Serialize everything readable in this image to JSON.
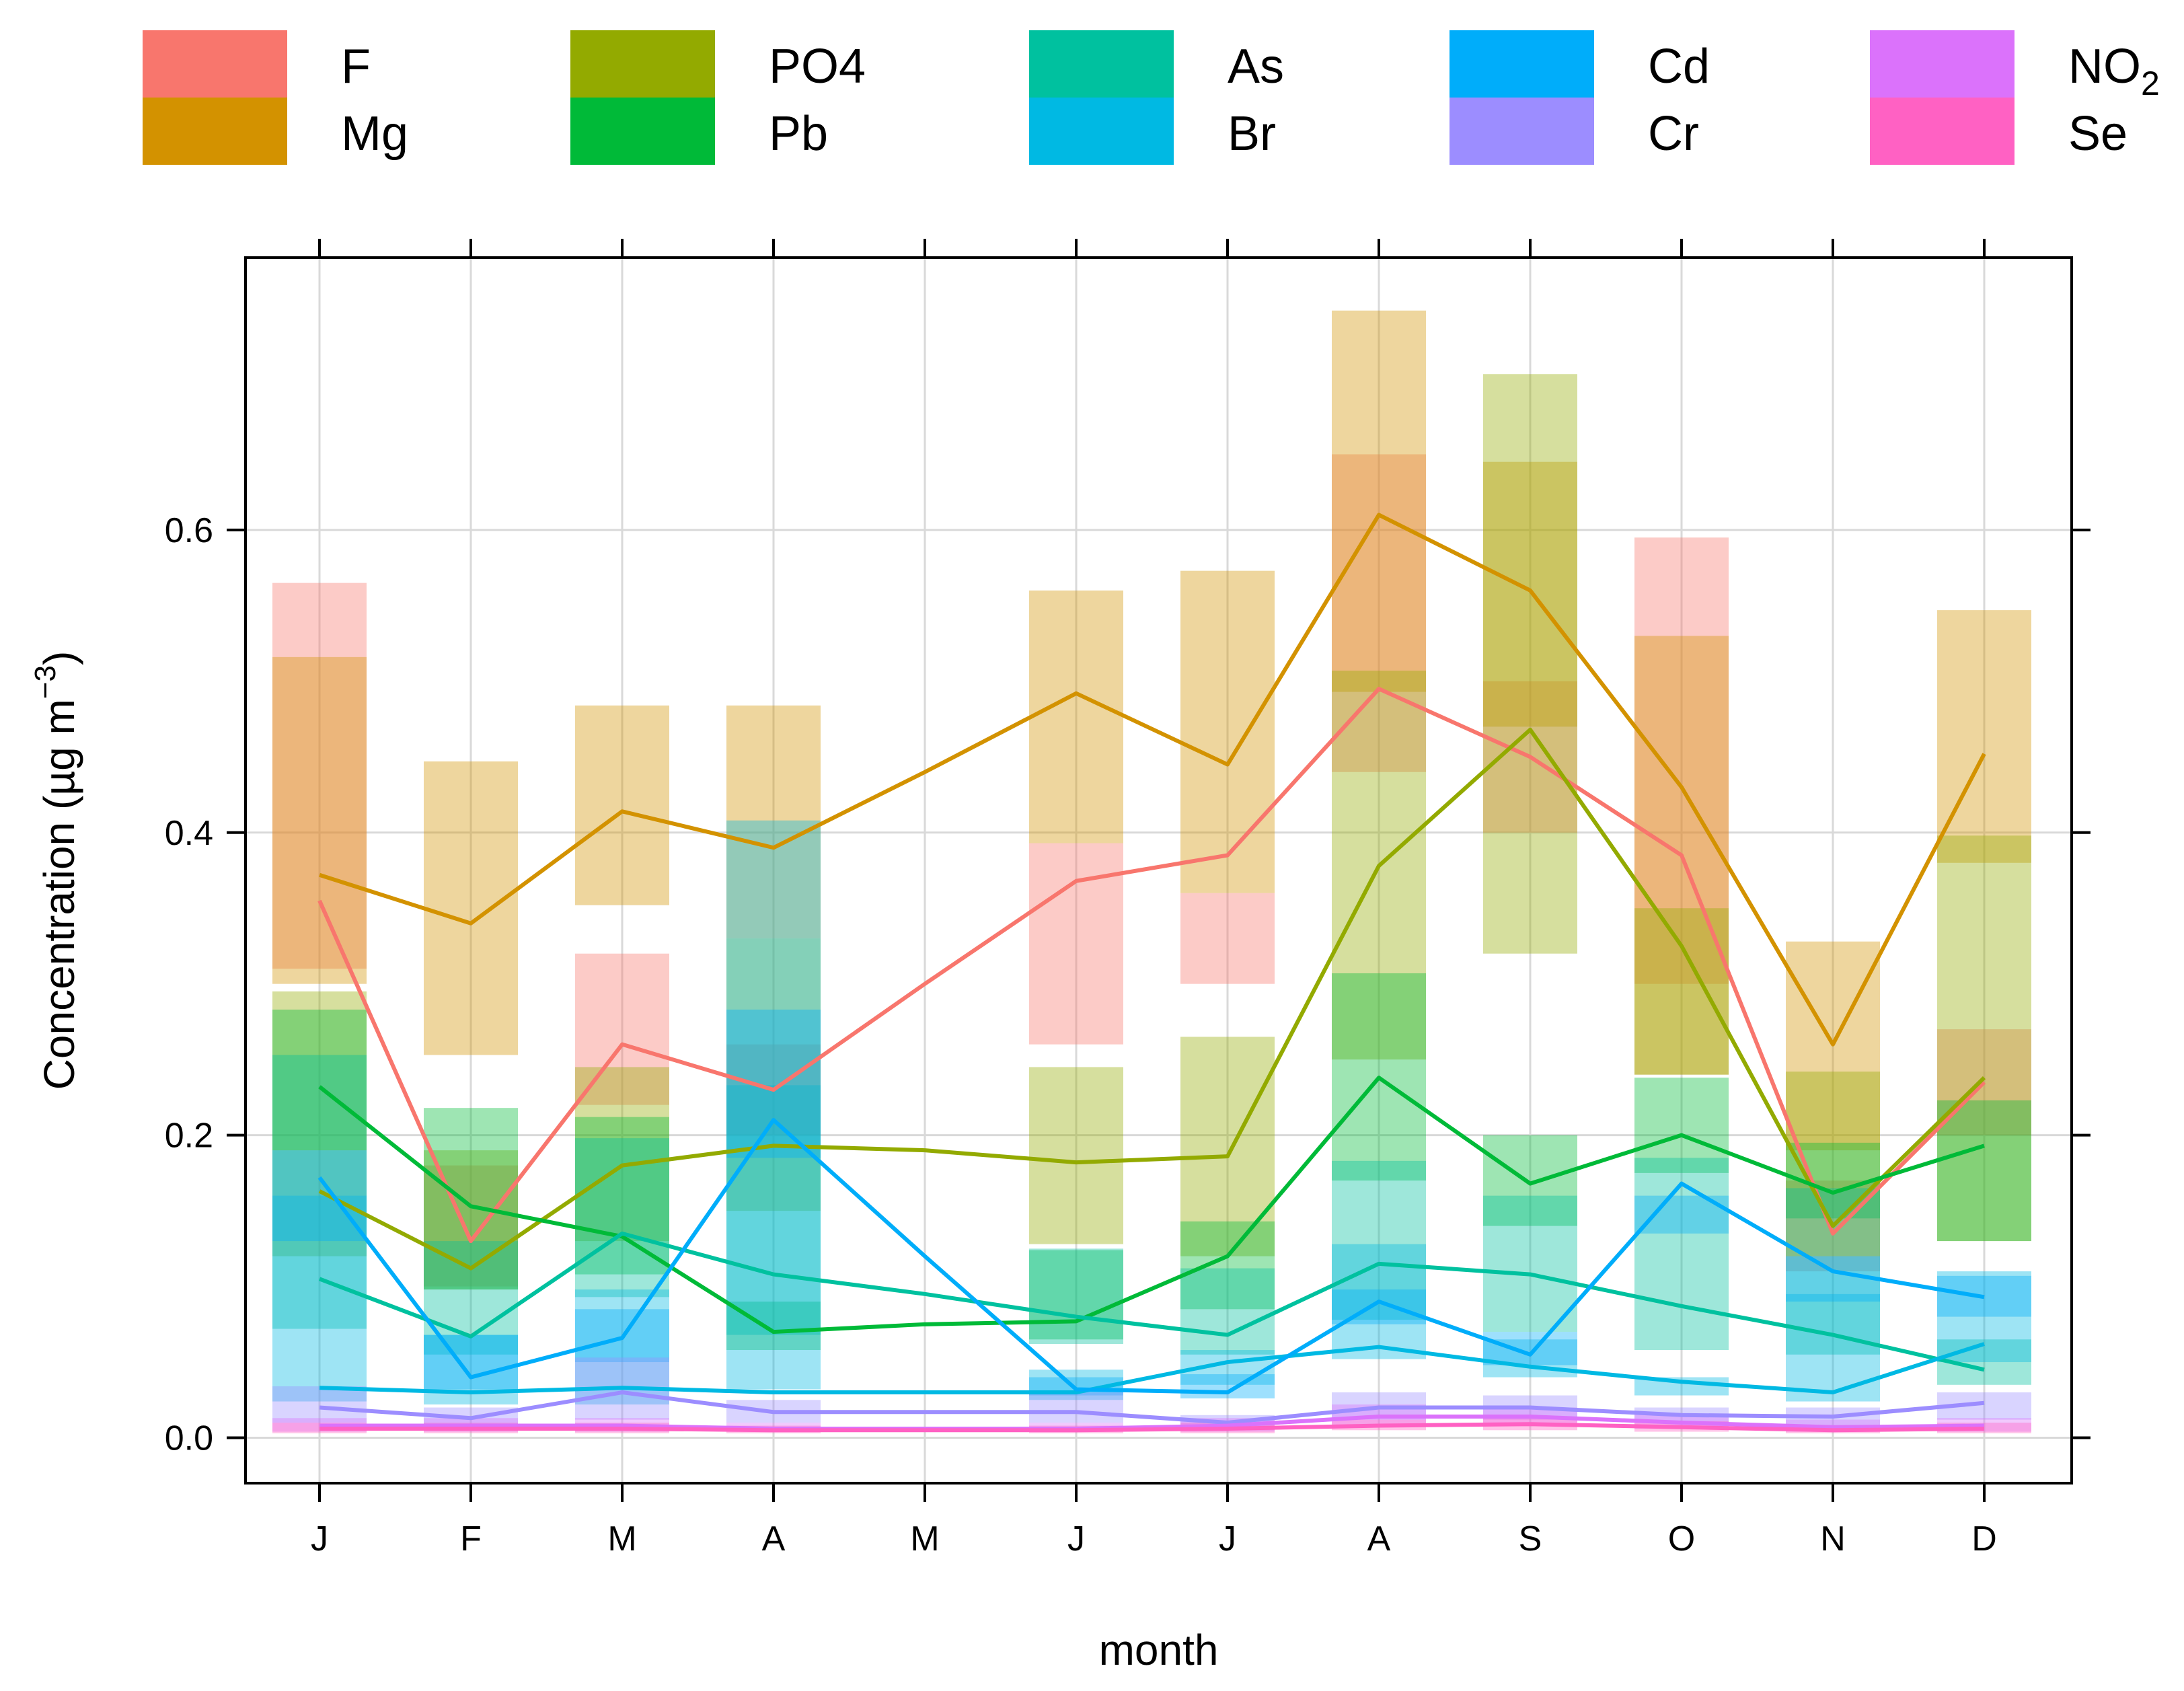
{
  "chart_data": {
    "type": "line",
    "title": "",
    "xlabel": "month",
    "ylabel": "Concentration (µg m^-3)",
    "ylabel_parts": {
      "main": "Concentration (",
      "unit_mu": "µg m",
      "exp": "−3",
      "close": ")"
    },
    "categories": [
      "J",
      "F",
      "M",
      "A",
      "M",
      "J",
      "J",
      "A",
      "S",
      "O",
      "N",
      "D"
    ],
    "ylim": [
      -0.03,
      0.78
    ],
    "yticks": [
      0.0,
      0.2,
      0.4,
      0.6
    ],
    "ytick_labels": [
      "0.0",
      "0.2",
      "0.4",
      "0.6"
    ],
    "grid": true,
    "legend_position": "top",
    "band_opacity": 0.38,
    "series": [
      {
        "name": "F",
        "label": "F",
        "color": "#F8766D",
        "values": [
          0.355,
          0.13,
          0.26,
          0.23,
          0.3,
          0.368,
          0.385,
          0.495,
          0.45,
          0.385,
          0.135,
          0.235
        ],
        "low": [
          0.31,
          0.1,
          0.22,
          0.2,
          null,
          0.26,
          0.3,
          0.44,
          0.4,
          0.3,
          0.11,
          0.2
        ],
        "high": [
          0.565,
          0.18,
          0.32,
          0.26,
          null,
          0.393,
          0.36,
          0.65,
          0.5,
          0.595,
          0.17,
          0.27
        ]
      },
      {
        "name": "Mg",
        "label": "Mg",
        "color": "#D39200",
        "values": [
          0.372,
          0.34,
          0.414,
          0.39,
          0.44,
          0.492,
          0.445,
          0.61,
          0.56,
          0.43,
          0.26,
          0.452
        ],
        "low": [
          0.3,
          0.253,
          0.352,
          0.33,
          null,
          0.393,
          0.36,
          0.493,
          0.47,
          0.24,
          0.19,
          0.38
        ],
        "high": [
          0.516,
          0.447,
          0.484,
          0.484,
          null,
          0.56,
          0.573,
          0.745,
          0.645,
          0.53,
          0.328,
          0.547
        ]
      },
      {
        "name": "PO4",
        "label": "PO4",
        "color": "#93AA00",
        "values": [
          0.163,
          0.112,
          0.18,
          0.193,
          0.19,
          0.182,
          0.186,
          0.378,
          0.468,
          0.325,
          0.14,
          0.238
        ],
        "low": [
          0.12,
          0.098,
          0.13,
          0.15,
          null,
          0.128,
          0.12,
          0.25,
          0.32,
          0.24,
          0.12,
          0.13
        ],
        "high": [
          0.295,
          0.19,
          0.245,
          0.33,
          null,
          0.245,
          0.265,
          0.507,
          0.703,
          0.35,
          0.242,
          0.398
        ]
      },
      {
        "name": "Pb",
        "label": "Pb",
        "color": "#00BA38",
        "values": [
          0.232,
          0.153,
          0.133,
          0.07,
          0.075,
          0.077,
          0.12,
          0.238,
          0.168,
          0.2,
          0.162,
          0.193
        ],
        "low": [
          0.19,
          0.098,
          0.108,
          0.058,
          null,
          0.065,
          0.085,
          0.17,
          0.14,
          0.175,
          0.145,
          0.13
        ],
        "high": [
          0.283,
          0.218,
          0.212,
          0.09,
          null,
          0.124,
          0.143,
          0.307,
          0.2,
          0.238,
          0.195,
          0.223
        ]
      },
      {
        "name": "As",
        "label": "As",
        "color": "#00C19F",
        "values": [
          0.105,
          0.067,
          0.135,
          0.108,
          0.095,
          0.08,
          0.068,
          0.115,
          0.108,
          0.087,
          0.068,
          0.045
        ],
        "low": [
          0.072,
          0.055,
          0.093,
          0.068,
          null,
          0.062,
          0.055,
          0.078,
          0.07,
          0.058,
          0.055,
          0.035
        ],
        "high": [
          0.253,
          0.13,
          0.198,
          0.233,
          null,
          0.125,
          0.112,
          0.183,
          0.16,
          0.185,
          0.165,
          0.065
        ]
      },
      {
        "name": "Br",
        "label": "Br",
        "color": "#00B9E3",
        "values": [
          0.033,
          0.03,
          0.033,
          0.03,
          0.03,
          0.03,
          0.05,
          0.06,
          0.047,
          0.037,
          0.03,
          0.062
        ],
        "low": [
          0.024,
          0.022,
          0.022,
          0.032,
          null,
          0.025,
          0.035,
          0.052,
          0.04,
          0.028,
          0.024,
          0.05
        ],
        "high": [
          0.16,
          0.068,
          0.098,
          0.408,
          null,
          0.045,
          0.058,
          0.128,
          0.065,
          0.04,
          0.095,
          0.11
        ]
      },
      {
        "name": "Cd",
        "label": "Cd",
        "color": "#00ADFA",
        "values": [
          0.172,
          0.04,
          0.066,
          0.21,
          0.12,
          0.032,
          0.03,
          0.09,
          0.055,
          0.168,
          0.11,
          0.093
        ],
        "low": [
          0.13,
          0.032,
          0.05,
          0.185,
          null,
          0.028,
          0.026,
          0.075,
          0.048,
          0.135,
          0.09,
          0.08
        ],
        "high": [
          0.19,
          0.068,
          0.085,
          0.283,
          null,
          0.04,
          0.042,
          0.098,
          0.07,
          0.16,
          0.12,
          0.107
        ]
      },
      {
        "name": "Cr",
        "label": "Cr",
        "color": "#9C8DFF",
        "values": [
          0.02,
          0.013,
          0.03,
          0.017,
          0.017,
          0.017,
          0.01,
          0.02,
          0.02,
          0.015,
          0.014,
          0.023
        ],
        "low": [
          0.01,
          0.008,
          0.012,
          0.01,
          null,
          0.01,
          0.005,
          0.012,
          0.012,
          0.01,
          0.008,
          0.012
        ],
        "high": [
          0.034,
          0.02,
          0.053,
          0.025,
          null,
          0.03,
          0.015,
          0.03,
          0.028,
          0.02,
          0.02,
          0.03
        ]
      },
      {
        "name": "NO2",
        "label": "NO",
        "label_sub": "2",
        "color": "#DB72FB",
        "values": [
          0.008,
          0.008,
          0.008,
          0.006,
          0.006,
          0.006,
          0.008,
          0.014,
          0.014,
          0.01,
          0.007,
          0.008
        ],
        "low": [
          0.004,
          0.004,
          0.004,
          0.004,
          null,
          0.004,
          0.004,
          0.008,
          0.008,
          0.006,
          0.004,
          0.004
        ],
        "high": [
          0.013,
          0.013,
          0.013,
          0.01,
          null,
          0.01,
          0.013,
          0.022,
          0.02,
          0.016,
          0.012,
          0.013
        ]
      },
      {
        "name": "Se",
        "label": "Se",
        "color": "#FF61C3",
        "values": [
          0.006,
          0.006,
          0.006,
          0.005,
          0.005,
          0.005,
          0.006,
          0.008,
          0.009,
          0.007,
          0.005,
          0.006
        ],
        "low": [
          0.003,
          0.003,
          0.003,
          0.003,
          null,
          0.003,
          0.003,
          0.005,
          0.005,
          0.004,
          0.003,
          0.003
        ],
        "high": [
          0.01,
          0.01,
          0.01,
          0.008,
          null,
          0.008,
          0.01,
          0.012,
          0.013,
          0.011,
          0.008,
          0.01
        ]
      }
    ]
  }
}
